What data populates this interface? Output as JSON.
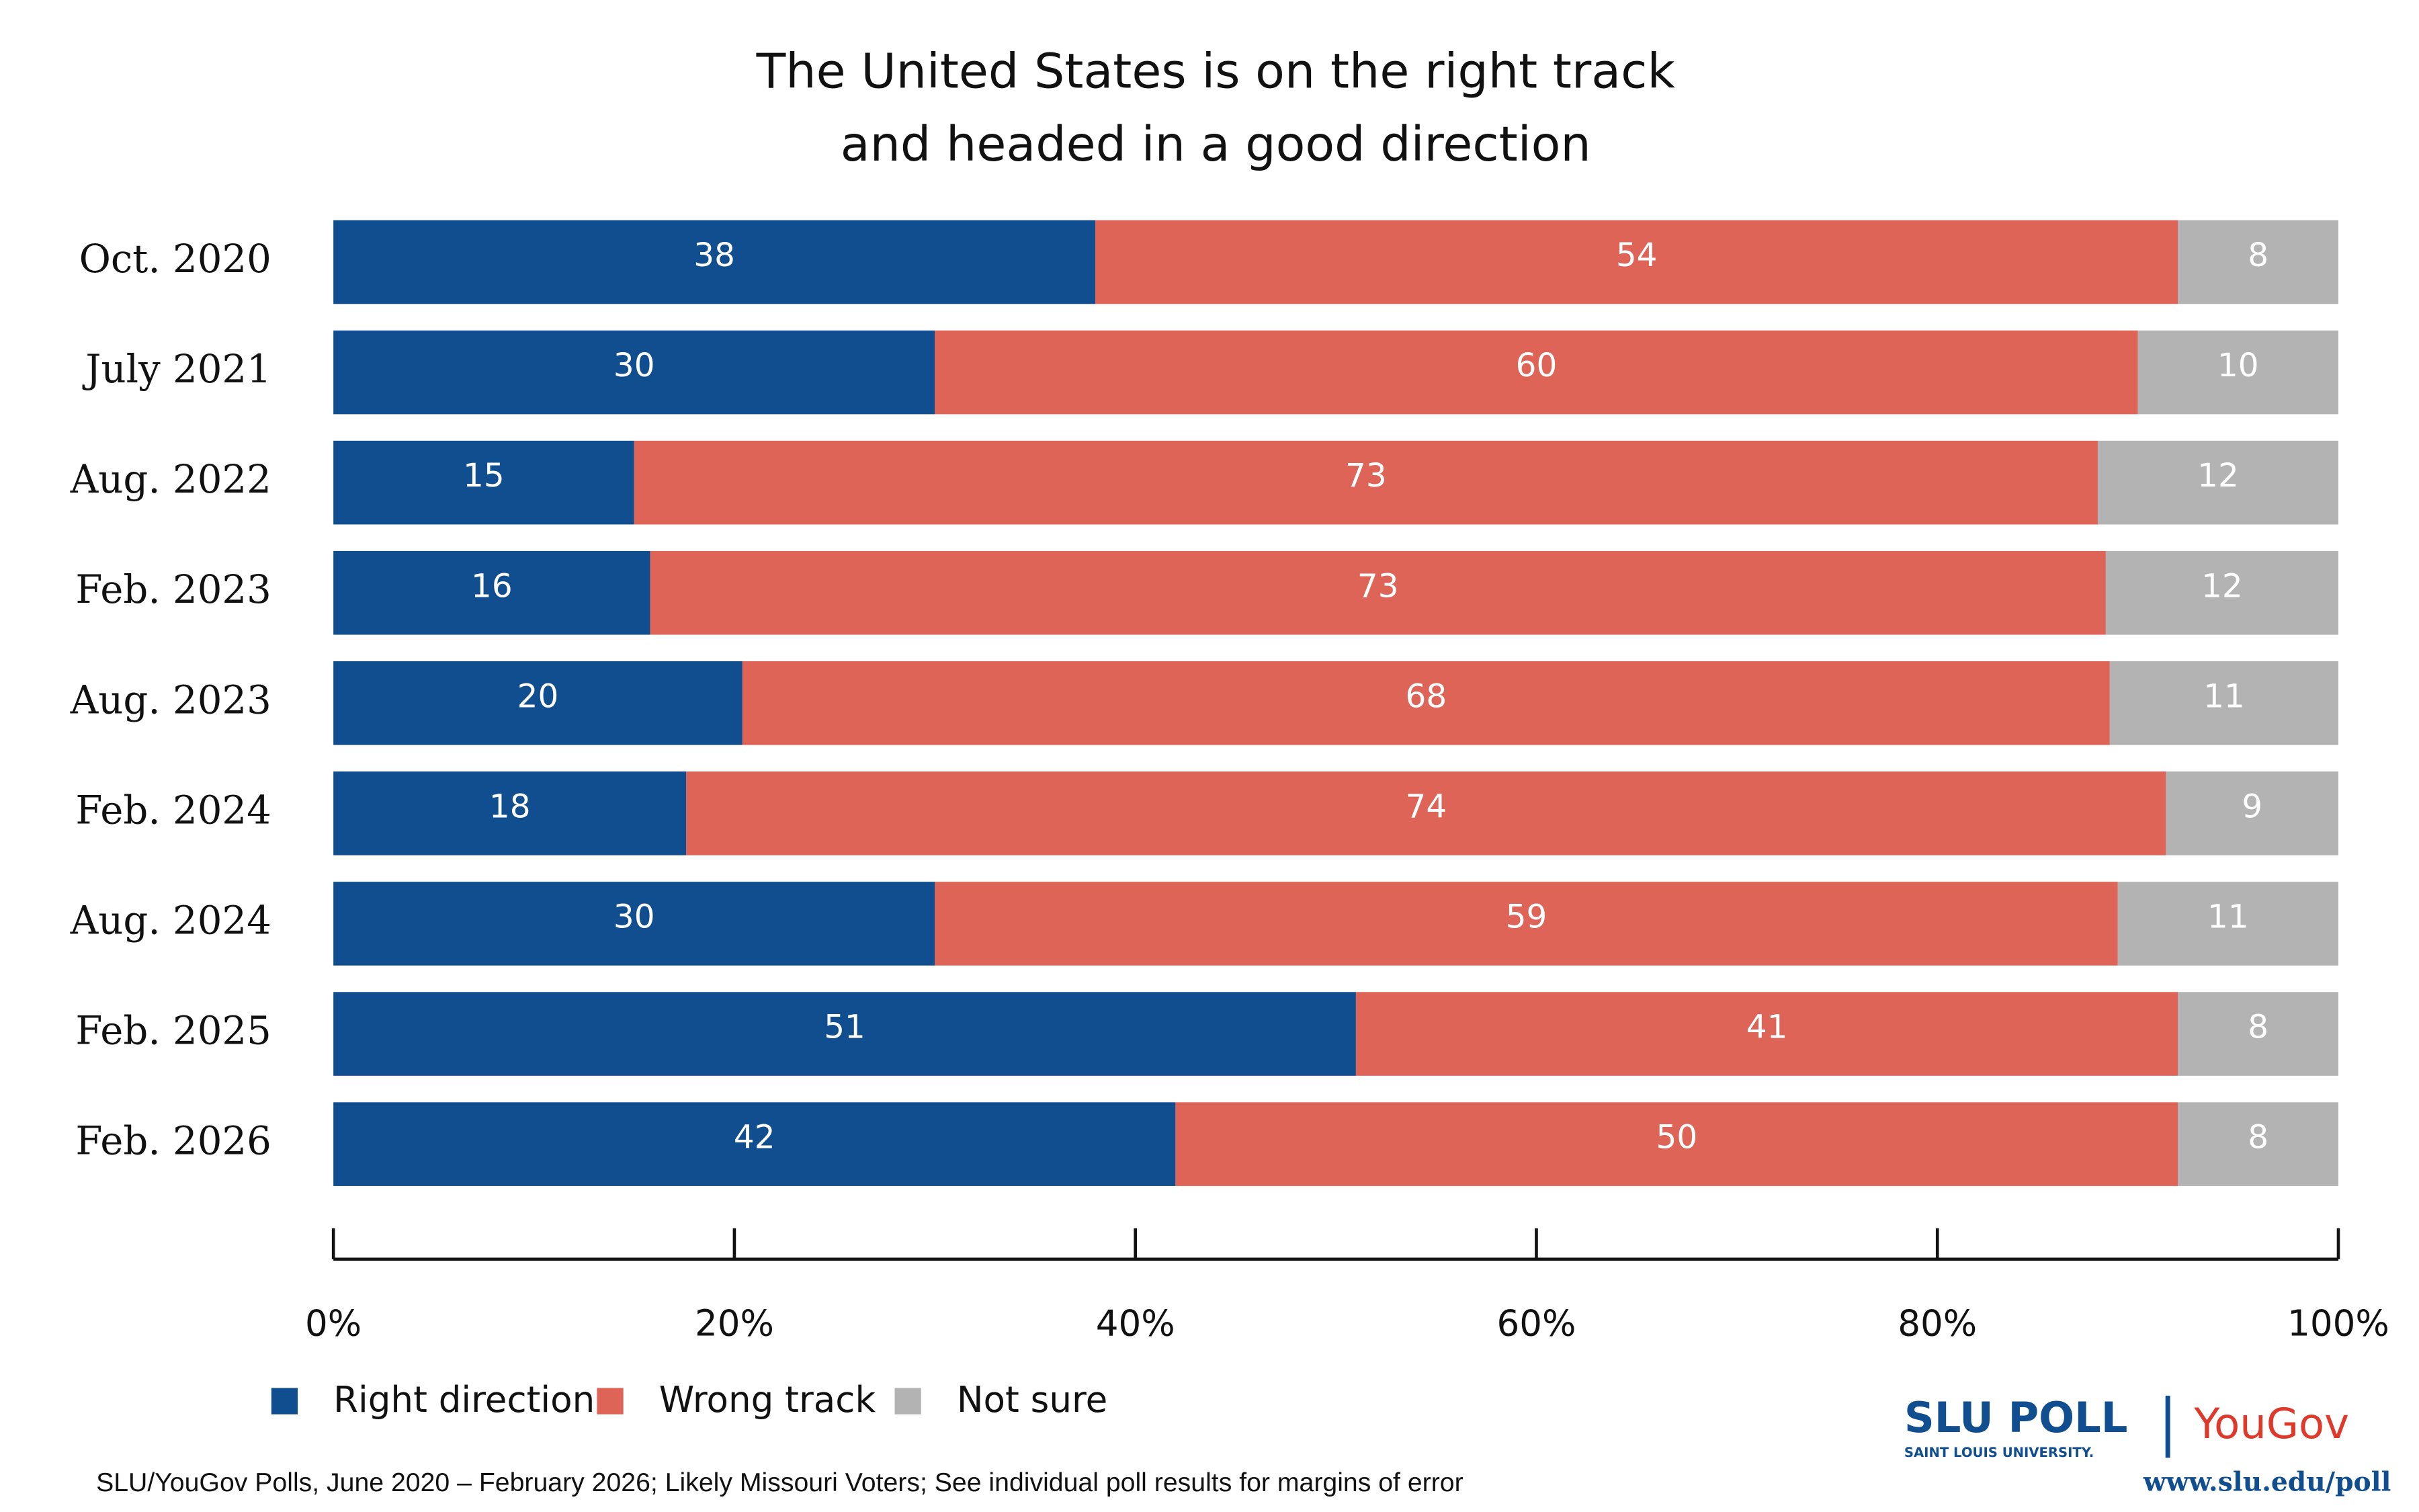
{
  "chart_data": {
    "type": "stacked-bar-horizontal",
    "title": [
      "The United States is on the right track",
      "and headed in a good direction"
    ],
    "categories": [
      "Oct. 2020",
      "July 2021",
      "Aug. 2022",
      "Feb. 2023",
      "Aug. 2023",
      "Feb. 2024",
      "Aug. 2024",
      "Feb. 2025",
      "Feb. 2026"
    ],
    "series": [
      {
        "name": "Right direction",
        "color": "#104e8f",
        "values": [
          38,
          30,
          15,
          15.8,
          20.4,
          17.6,
          30,
          51,
          42
        ],
        "value_labels": [
          "38",
          "30",
          "15",
          "16",
          "20",
          "18",
          "30",
          "51",
          "42"
        ]
      },
      {
        "name": "Wrong track",
        "color": "#de6458",
        "values": [
          54,
          60,
          73,
          72.6,
          68.2,
          73.8,
          59,
          41,
          50
        ],
        "value_labels": [
          "54",
          "60",
          "73",
          "73",
          "68",
          "74",
          "59",
          "41",
          "50"
        ]
      },
      {
        "name": "Not sure",
        "color": "#b3b3b3",
        "values": [
          8,
          10,
          12,
          11.6,
          11.4,
          8.6,
          11,
          8,
          8
        ],
        "value_labels": [
          "8",
          "10",
          "12",
          "12",
          "11",
          "9",
          "11",
          "8",
          "8"
        ]
      }
    ],
    "xlim": [
      0,
      100
    ],
    "xticks": [
      {
        "value": 0,
        "label": "0%"
      },
      {
        "value": 20,
        "label": "20%"
      },
      {
        "value": 40,
        "label": "40%"
      },
      {
        "value": 60,
        "label": "60%"
      },
      {
        "value": 80,
        "label": "80%"
      },
      {
        "value": 100,
        "label": "100%"
      }
    ],
    "legend": "bottom-left",
    "source": "SLU/YouGov Polls, June 2020 – February 2026; Likely Missouri Voters; See individual poll results for margins of error"
  },
  "branding": {
    "slu": "SLU POLL",
    "slu_sub": "SAINT LOUIS UNIVERSITY.",
    "partner": "YouGov",
    "url": "www.slu.edu/poll"
  }
}
